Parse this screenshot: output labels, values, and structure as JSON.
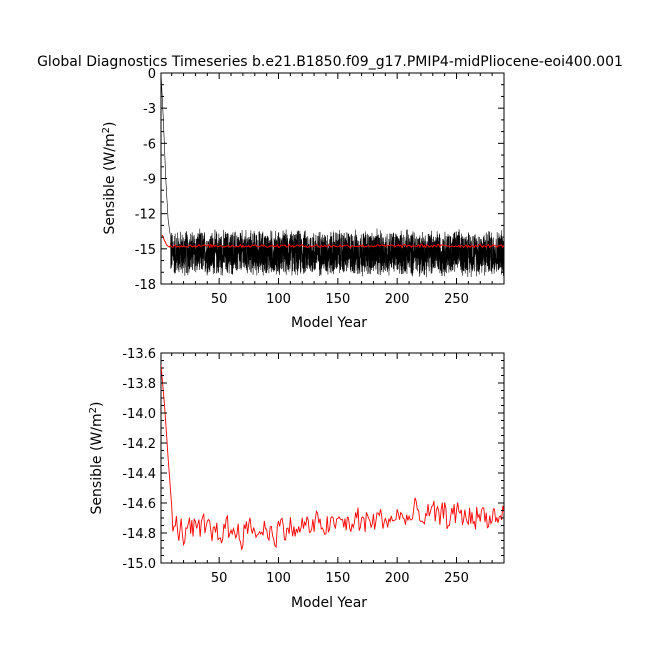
{
  "title": "Global Diagnostics Timeseries b.e21.B1850.f09_g17.PMIP4-midPliocene-eoi400.001",
  "chart_data": [
    {
      "type": "line",
      "xlabel": "Model Year",
      "ylabel": "Sensible (W/m²)",
      "ylabel_main": "Sensible (W/m",
      "ylabel_sup": "2",
      "ylabel_end": ")",
      "xlim": [
        1,
        290
      ],
      "ylim": [
        -18,
        0
      ],
      "xticks": [
        50,
        100,
        150,
        200,
        250
      ],
      "yticks": [
        0,
        -3,
        -6,
        -9,
        -12,
        -15,
        -18
      ],
      "grid": false,
      "series": [
        {
          "color": "#000000",
          "description_of_shape": "monthly values: start near 0 at year 1, fall to ~-14 by year 8, then oscillate between about -17.5 and -13.5",
          "start_points": [
            [
              1,
              0
            ],
            [
              3,
              -4
            ],
            [
              5,
              -9
            ],
            [
              7,
              -12.5
            ],
            [
              9,
              -14
            ]
          ],
          "noise_mean": -15.0,
          "noise_low": -17.5,
          "noise_high": -13.2
        },
        {
          "color": "#ff0000",
          "start_points": [
            [
              2,
              -13.8
            ],
            [
              4,
              -14.3
            ],
            [
              6,
              -14.7
            ],
            [
              8,
              -14.85
            ]
          ],
          "mean": -14.75
        }
      ]
    },
    {
      "type": "line",
      "xlabel": "Model Year",
      "ylabel": "Sensible (W/m²)",
      "ylabel_main": "Sensible (W/m",
      "ylabel_sup": "2",
      "ylabel_end": ")",
      "xlim": [
        1,
        290
      ],
      "ylim": [
        -15.0,
        -13.6
      ],
      "xticks": [
        50,
        100,
        150,
        200,
        250
      ],
      "yticks": [
        "-13.6",
        "-13.8",
        "-14.0",
        "-14.2",
        "-14.4",
        "-14.6",
        "-14.8",
        "-15.0"
      ],
      "grid": false,
      "series": [
        {
          "color": "#ff0000",
          "start_points": [
            [
              1,
              -13.68
            ],
            [
              4,
              -13.95
            ],
            [
              7,
              -14.3
            ],
            [
              10,
              -14.62
            ]
          ],
          "trend": [
            [
              10,
              -14.78
            ],
            [
              100,
              -14.78
            ],
            [
              150,
              -14.74
            ],
            [
              200,
              -14.7
            ],
            [
              250,
              -14.68
            ],
            [
              290,
              -14.7
            ]
          ],
          "low": -14.95,
          "high": -14.53
        }
      ]
    }
  ]
}
